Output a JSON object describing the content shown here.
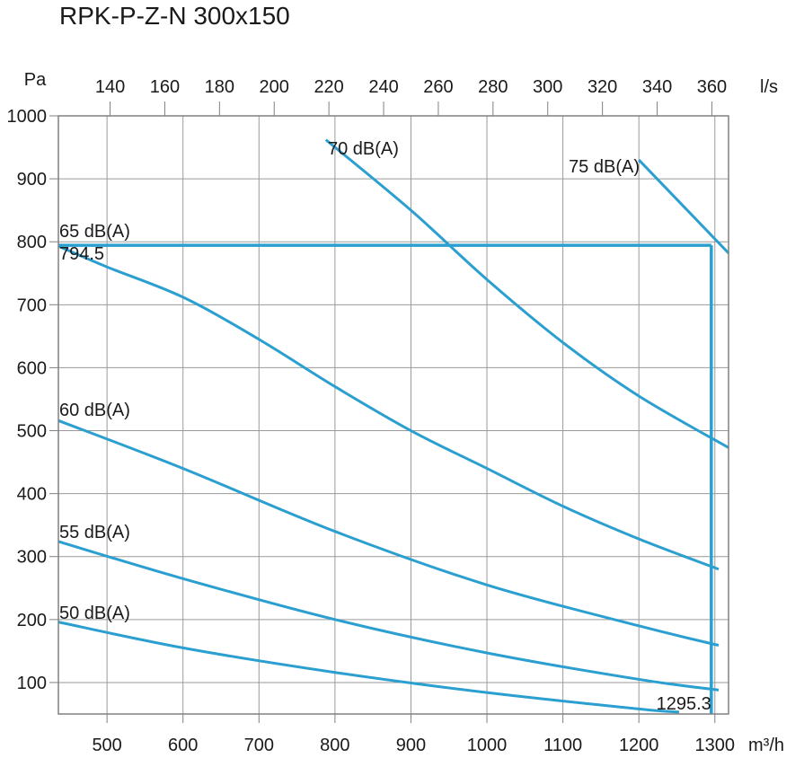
{
  "chart_data": {
    "type": "line",
    "title": "RPK-P-Z-N 300x150",
    "xlabel": "m³/h",
    "ylabel": "Pa",
    "x2label": "l/s",
    "xlim": [
      436,
      1318
    ],
    "ylim": [
      50,
      1000
    ],
    "x2lim": [
      121.1,
      366.1
    ],
    "grid": true,
    "x_ticks": [
      "500",
      "600",
      "700",
      "800",
      "900",
      "1000",
      "1100",
      "1200",
      "1300"
    ],
    "x2_ticks": [
      "140",
      "160",
      "180",
      "200",
      "220",
      "240",
      "260",
      "280",
      "300",
      "320",
      "340",
      "360"
    ],
    "y_ticks": [
      "100",
      "200",
      "300",
      "400",
      "500",
      "600",
      "700",
      "800",
      "900",
      "1000"
    ],
    "line_color": "#2a9fd0",
    "series": [
      {
        "name": "50 dB(A)",
        "x": [
          436,
          600,
          800,
          1000,
          1200,
          1253
        ],
        "y": [
          196,
          155,
          116,
          84,
          58,
          53
        ]
      },
      {
        "name": "55 dB(A)",
        "x": [
          436,
          600,
          800,
          1000,
          1200,
          1305
        ],
        "y": [
          324,
          265,
          200,
          147,
          105,
          88
        ]
      },
      {
        "name": "60 dB(A)",
        "x": [
          436,
          600,
          800,
          1000,
          1200,
          1305
        ],
        "y": [
          516,
          440,
          340,
          255,
          190,
          159
        ]
      },
      {
        "name": "65 dB(A)",
        "x": [
          436,
          500,
          600,
          700,
          800,
          900,
          1000,
          1100,
          1200,
          1305
        ],
        "y": [
          793,
          760,
          712,
          645,
          570,
          500,
          440,
          380,
          328,
          280
        ]
      },
      {
        "name": "70 dB(A)",
        "x": [
          788,
          900,
          1000,
          1100,
          1200,
          1318
        ],
        "y": [
          962,
          850,
          740,
          640,
          555,
          473
        ]
      },
      {
        "name": "75 dB(A)",
        "x": [
          1200,
          1318
        ],
        "y": [
          930,
          782
        ]
      }
    ],
    "operating_point": {
      "x": 1295.3,
      "y": 794.5,
      "x_label": "1295.3",
      "y_label": "794.5"
    }
  }
}
